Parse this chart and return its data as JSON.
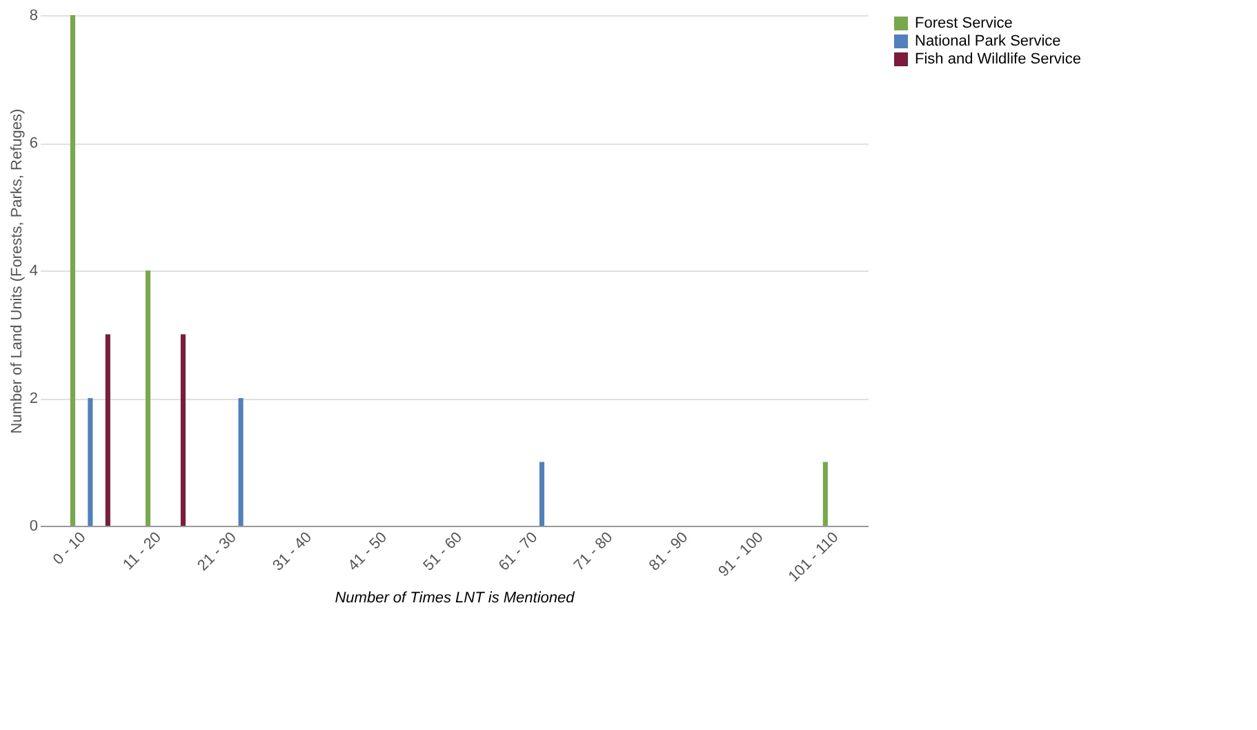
{
  "chart_data": {
    "type": "bar",
    "xlabel": "Number of Times LNT is Mentioned",
    "ylabel": "Number of Land Units (Forests, Parks, Refuges)",
    "categories": [
      "0 - 10",
      "11 - 20",
      "21 - 30",
      "31 - 40",
      "41 - 50",
      "51 - 60",
      "61 - 70",
      "71 - 80",
      "81 - 90",
      "91 - 100",
      "101 - 110"
    ],
    "series": [
      {
        "name": "Forest Service",
        "color": "#77a84a",
        "values": [
          8,
          4,
          0,
          0,
          0,
          0,
          0,
          0,
          0,
          0,
          1
        ]
      },
      {
        "name": "National Park Service",
        "color": "#4f81bd",
        "values": [
          2,
          0,
          2,
          0,
          0,
          0,
          1,
          0,
          0,
          0,
          0
        ]
      },
      {
        "name": "Fish and Wildlife Service",
        "color": "#7b1c3a",
        "values": [
          3,
          3,
          0,
          0,
          0,
          0,
          0,
          0,
          0,
          0,
          0
        ]
      }
    ],
    "ylim": [
      0,
      8
    ],
    "yticks": [
      0,
      2,
      4,
      6,
      8
    ],
    "grid": "y",
    "legend": "right"
  }
}
